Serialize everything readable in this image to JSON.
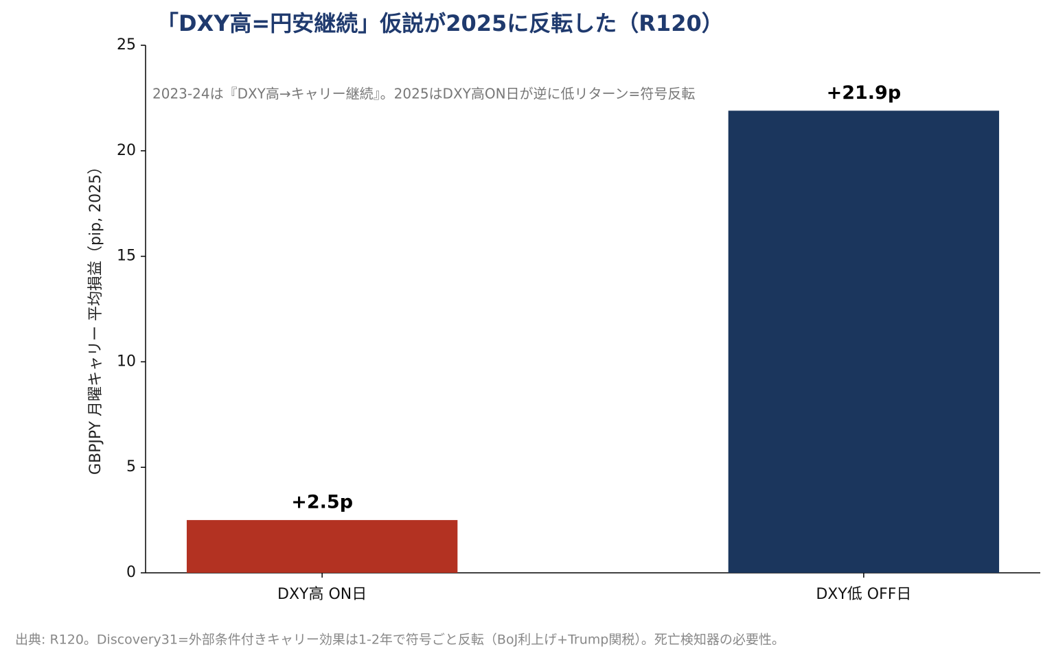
{
  "chart_data": {
    "type": "bar",
    "title": "「DXY高=円安継続」仮説が2025に反転した（R120）",
    "annotation": "2023-24は『DXY高→キャリー継続』。2025はDXY高ON日が逆に低リターン=符号反転",
    "ylabel": "GBPJPY 月曜キャリー 平均損益（pip, 2025）",
    "source": "出典: R120。Discovery31=外部条件付きキャリー効果は1-2年で符号ごと反転（BoJ利上げ+Trump関税）。死亡検知器の必要性。",
    "categories": [
      "DXY高 ON日",
      "DXY低 OFF日"
    ],
    "values": [
      2.5,
      21.9
    ],
    "value_labels": [
      "+2.5p",
      "+21.9p"
    ],
    "colors": [
      "#b33222",
      "#1b365d"
    ],
    "ylim": [
      0,
      25
    ],
    "yticks": [
      0,
      5,
      10,
      15,
      20,
      25
    ],
    "grid": false
  }
}
